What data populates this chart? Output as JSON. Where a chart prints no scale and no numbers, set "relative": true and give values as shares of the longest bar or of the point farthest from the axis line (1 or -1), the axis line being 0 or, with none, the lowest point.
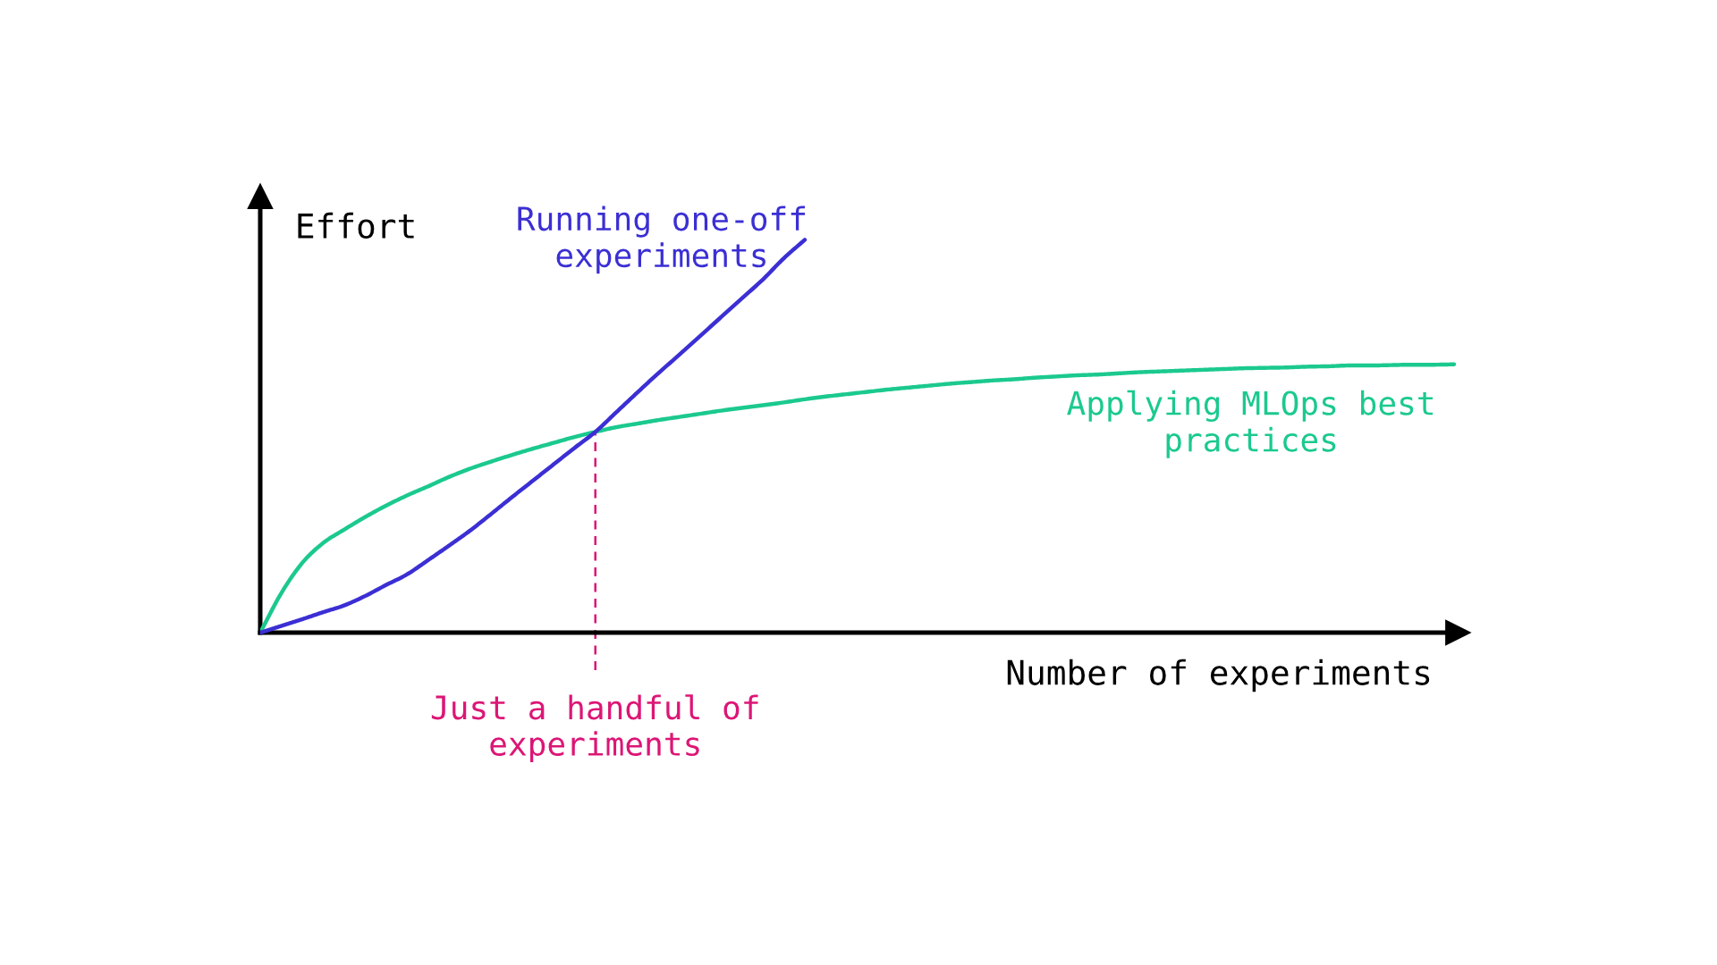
{
  "chart_data": {
    "type": "line",
    "relative": true,
    "xlabel": "Number of experiments",
    "ylabel": "Effort",
    "categories": [
      null,
      null,
      null,
      null,
      null,
      null,
      null,
      null,
      null,
      null,
      null,
      null,
      null,
      null,
      null,
      null,
      null,
      null,
      null,
      null,
      null,
      null,
      null,
      null,
      null,
      null,
      null,
      null,
      null,
      null,
      null,
      null,
      null,
      null,
      null,
      null,
      null,
      null,
      null,
      null,
      null,
      null,
      null,
      null,
      null,
      null,
      null,
      null,
      null,
      null,
      null,
      null,
      null,
      null,
      null,
      null,
      null,
      null
    ],
    "series": [
      {
        "name": "Running one-off experiments",
        "color": "#3b2fd4",
        "values": [
          0,
          0.017,
          0.034,
          0.052,
          0.069,
          0.093,
          0.121,
          0.148,
          0.184,
          0.221,
          0.259,
          0.301,
          0.344,
          0.386,
          0.428,
          0.47,
          0.511,
          0.561,
          0.611,
          0.66,
          0.707,
          0.755,
          0.803,
          0.851,
          0.899,
          0.953,
          1,
          null,
          null,
          null,
          null,
          null,
          null,
          null,
          null,
          null,
          null,
          null,
          null,
          null,
          null,
          null,
          null,
          null,
          null,
          null,
          null,
          null,
          null,
          null,
          null,
          null,
          null,
          null,
          null,
          null,
          null,
          null
        ]
      },
      {
        "name": "Applying MLOps best practices",
        "color": "#1bc98e",
        "values": [
          0,
          0.1,
          0.177,
          0.228,
          0.262,
          0.294,
          0.323,
          0.349,
          0.372,
          0.396,
          0.417,
          0.435,
          0.452,
          0.468,
          0.483,
          0.498,
          0.511,
          0.523,
          0.532,
          0.541,
          0.549,
          0.557,
          0.565,
          0.572,
          0.579,
          0.586,
          0.594,
          0.601,
          0.607,
          0.613,
          0.619,
          0.624,
          0.629,
          0.634,
          0.638,
          0.642,
          0.645,
          0.649,
          0.652,
          0.655,
          0.657,
          0.66,
          0.663,
          0.665,
          0.667,
          0.669,
          0.671,
          0.673,
          0.674,
          0.675,
          0.677,
          0.678,
          0.68,
          0.68,
          0.681,
          0.682,
          0.682,
          0.683
        ]
      }
    ],
    "annotations": [
      "Just a handful of experiments"
    ]
  }
}
